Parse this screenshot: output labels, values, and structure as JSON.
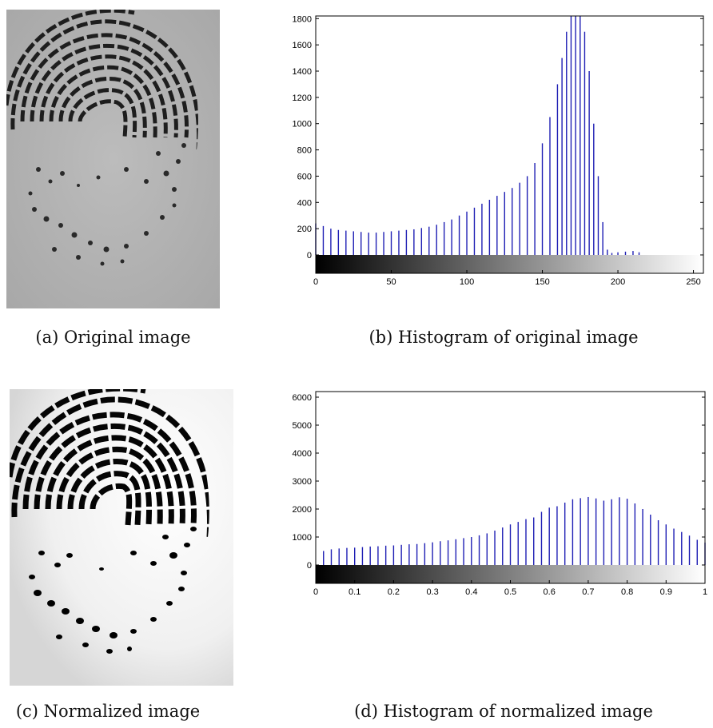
{
  "captions": {
    "a": "(a) Original image",
    "b": "(b) Histogram of original image",
    "c": "(c) Normalized image",
    "d": "(d) Histogram of normalized image"
  },
  "colors": {
    "bar": "#1f1fb4"
  },
  "chart_data": [
    {
      "type": "bar",
      "caption": "(b) Histogram of original image",
      "x_range": [
        0,
        255
      ],
      "ylim": [
        0,
        1820
      ],
      "xticks": [
        0,
        50,
        100,
        150,
        200,
        250
      ],
      "yticks": [
        0,
        200,
        400,
        600,
        800,
        1000,
        1200,
        1400,
        1600,
        1800
      ],
      "grid": false,
      "colorbar": "grayscale 0-255",
      "bins": [
        {
          "x": 0,
          "y": 240
        },
        {
          "x": 5,
          "y": 220
        },
        {
          "x": 10,
          "y": 200
        },
        {
          "x": 15,
          "y": 190
        },
        {
          "x": 20,
          "y": 185
        },
        {
          "x": 25,
          "y": 180
        },
        {
          "x": 30,
          "y": 175
        },
        {
          "x": 35,
          "y": 170
        },
        {
          "x": 40,
          "y": 170
        },
        {
          "x": 45,
          "y": 175
        },
        {
          "x": 50,
          "y": 180
        },
        {
          "x": 55,
          "y": 185
        },
        {
          "x": 60,
          "y": 190
        },
        {
          "x": 65,
          "y": 195
        },
        {
          "x": 70,
          "y": 205
        },
        {
          "x": 75,
          "y": 215
        },
        {
          "x": 80,
          "y": 230
        },
        {
          "x": 85,
          "y": 250
        },
        {
          "x": 90,
          "y": 270
        },
        {
          "x": 95,
          "y": 300
        },
        {
          "x": 100,
          "y": 330
        },
        {
          "x": 105,
          "y": 360
        },
        {
          "x": 110,
          "y": 390
        },
        {
          "x": 115,
          "y": 420
        },
        {
          "x": 120,
          "y": 450
        },
        {
          "x": 125,
          "y": 480
        },
        {
          "x": 130,
          "y": 510
        },
        {
          "x": 135,
          "y": 550
        },
        {
          "x": 140,
          "y": 600
        },
        {
          "x": 145,
          "y": 700
        },
        {
          "x": 150,
          "y": 850
        },
        {
          "x": 155,
          "y": 1050
        },
        {
          "x": 160,
          "y": 1300
        },
        {
          "x": 163,
          "y": 1500
        },
        {
          "x": 166,
          "y": 1700
        },
        {
          "x": 169,
          "y": 1820
        },
        {
          "x": 172,
          "y": 1820
        },
        {
          "x": 175,
          "y": 1820
        },
        {
          "x": 178,
          "y": 1700
        },
        {
          "x": 181,
          "y": 1400
        },
        {
          "x": 184,
          "y": 1000
        },
        {
          "x": 187,
          "y": 600
        },
        {
          "x": 190,
          "y": 250
        },
        {
          "x": 193,
          "y": 40
        },
        {
          "x": 196,
          "y": 15
        },
        {
          "x": 200,
          "y": 20
        },
        {
          "x": 205,
          "y": 25
        },
        {
          "x": 210,
          "y": 30
        },
        {
          "x": 214,
          "y": 20
        }
      ]
    },
    {
      "type": "bar",
      "caption": "(d) Histogram of normalized image",
      "x_range": [
        0,
        1
      ],
      "ylim": [
        0,
        6200
      ],
      "xticks": [
        0,
        0.1,
        0.2,
        0.3,
        0.4,
        0.5,
        0.6,
        0.7,
        0.8,
        0.9,
        1
      ],
      "yticks": [
        0,
        1000,
        2000,
        3000,
        4000,
        5000,
        6000
      ],
      "grid": false,
      "colorbar": "grayscale 0-1",
      "bins": [
        {
          "x": 0.02,
          "y": 500
        },
        {
          "x": 0.04,
          "y": 560
        },
        {
          "x": 0.06,
          "y": 590
        },
        {
          "x": 0.08,
          "y": 610
        },
        {
          "x": 0.1,
          "y": 620
        },
        {
          "x": 0.12,
          "y": 640
        },
        {
          "x": 0.14,
          "y": 660
        },
        {
          "x": 0.16,
          "y": 670
        },
        {
          "x": 0.18,
          "y": 690
        },
        {
          "x": 0.2,
          "y": 700
        },
        {
          "x": 0.22,
          "y": 720
        },
        {
          "x": 0.24,
          "y": 740
        },
        {
          "x": 0.26,
          "y": 750
        },
        {
          "x": 0.28,
          "y": 780
        },
        {
          "x": 0.3,
          "y": 810
        },
        {
          "x": 0.32,
          "y": 850
        },
        {
          "x": 0.34,
          "y": 880
        },
        {
          "x": 0.36,
          "y": 920
        },
        {
          "x": 0.38,
          "y": 960
        },
        {
          "x": 0.4,
          "y": 1000
        },
        {
          "x": 0.42,
          "y": 1060
        },
        {
          "x": 0.44,
          "y": 1130
        },
        {
          "x": 0.46,
          "y": 1230
        },
        {
          "x": 0.48,
          "y": 1340
        },
        {
          "x": 0.5,
          "y": 1450
        },
        {
          "x": 0.52,
          "y": 1540
        },
        {
          "x": 0.54,
          "y": 1640
        },
        {
          "x": 0.56,
          "y": 1700
        },
        {
          "x": 0.58,
          "y": 1900
        },
        {
          "x": 0.6,
          "y": 2050
        },
        {
          "x": 0.62,
          "y": 2100
        },
        {
          "x": 0.64,
          "y": 2230
        },
        {
          "x": 0.66,
          "y": 2350
        },
        {
          "x": 0.68,
          "y": 2390
        },
        {
          "x": 0.7,
          "y": 2430
        },
        {
          "x": 0.72,
          "y": 2380
        },
        {
          "x": 0.74,
          "y": 2300
        },
        {
          "x": 0.76,
          "y": 2350
        },
        {
          "x": 0.78,
          "y": 2420
        },
        {
          "x": 0.8,
          "y": 2370
        },
        {
          "x": 0.82,
          "y": 2200
        },
        {
          "x": 0.84,
          "y": 2000
        },
        {
          "x": 0.86,
          "y": 1800
        },
        {
          "x": 0.88,
          "y": 1600
        },
        {
          "x": 0.9,
          "y": 1450
        },
        {
          "x": 0.92,
          "y": 1300
        },
        {
          "x": 0.94,
          "y": 1180
        },
        {
          "x": 0.96,
          "y": 1050
        },
        {
          "x": 0.98,
          "y": 900
        },
        {
          "x": 1.0,
          "y": 800
        }
      ]
    }
  ]
}
